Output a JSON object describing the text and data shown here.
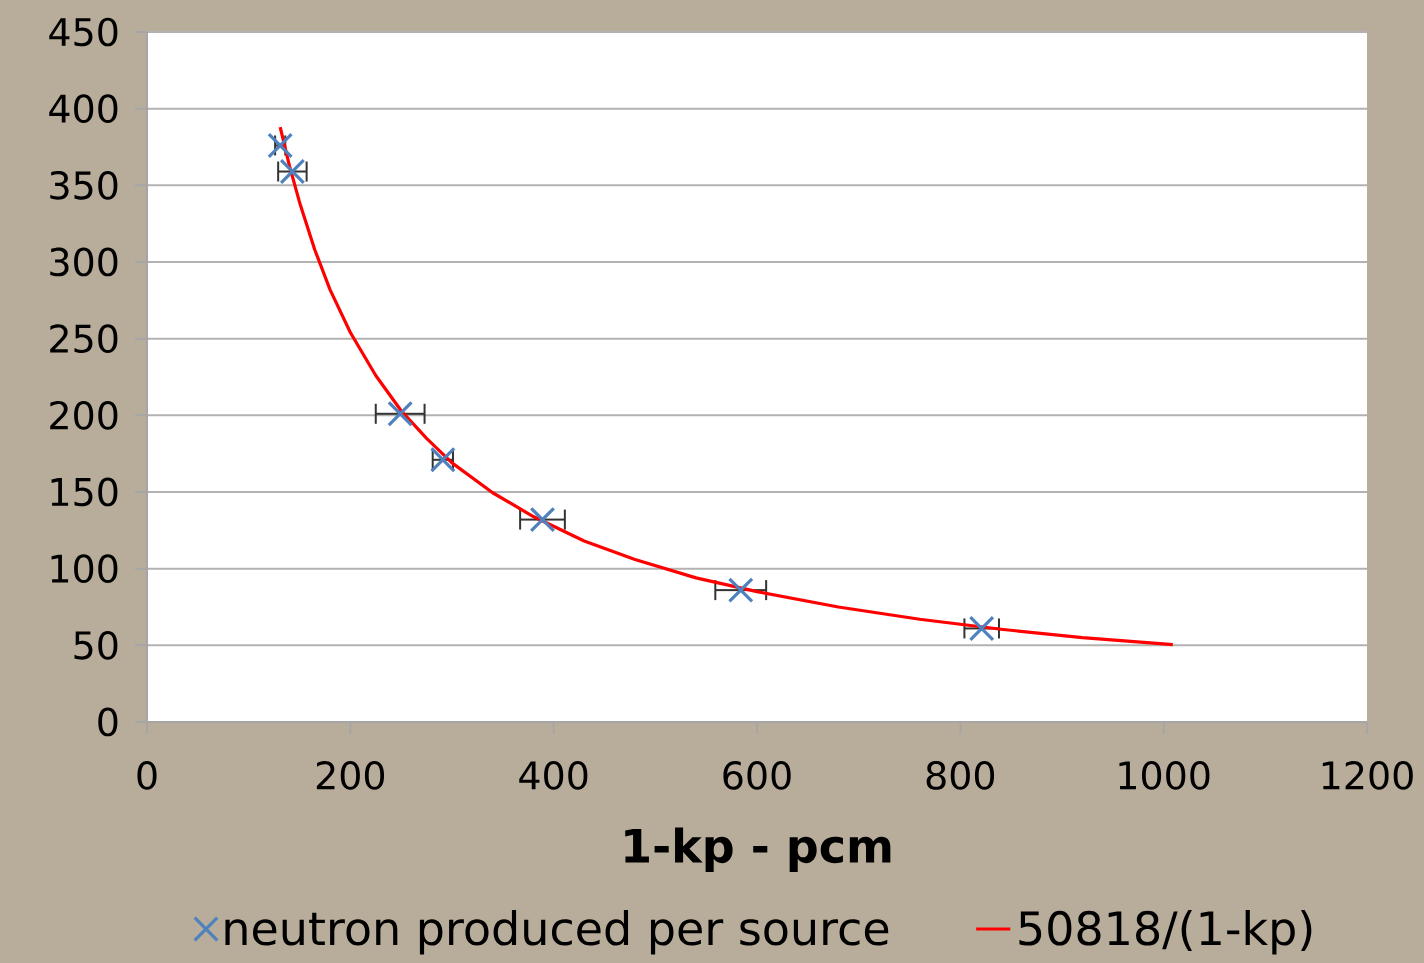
{
  "chart_data": {
    "type": "scatter",
    "xlabel": "1-kp - pcm",
    "xlim": [
      0,
      1200
    ],
    "xticks": [
      0,
      200,
      400,
      600,
      800,
      1000,
      1200
    ],
    "ylim": [
      0,
      450
    ],
    "yticks": [
      0,
      50,
      100,
      150,
      200,
      250,
      300,
      350,
      400,
      450
    ],
    "grid": "y",
    "legend": "bottom",
    "marker": "cross",
    "series": [
      {
        "name": "neutron produced per source",
        "color": "#4f81bd",
        "x": [
          131,
          143,
          249,
          291,
          389,
          584,
          821
        ],
        "values": [
          376,
          359,
          201,
          171,
          132,
          86,
          61
        ],
        "xerrors": [
          5,
          14,
          24,
          10,
          22,
          25,
          17
        ]
      },
      {
        "name": "50818/(1-kp)",
        "type": "line",
        "marker": "none",
        "color": "#ff0000",
        "x": [
          131,
          140,
          150,
          165,
          180,
          200,
          225,
          250,
          275,
          300,
          340,
          380,
          430,
          480,
          540,
          600,
          680,
          760,
          840,
          920,
          1009
        ],
        "values": [
          388,
          363,
          339,
          308,
          282,
          254,
          226,
          203,
          185,
          169,
          149.5,
          134,
          118,
          106,
          94,
          85,
          75,
          67,
          60.5,
          55,
          50.4
        ]
      }
    ]
  }
}
